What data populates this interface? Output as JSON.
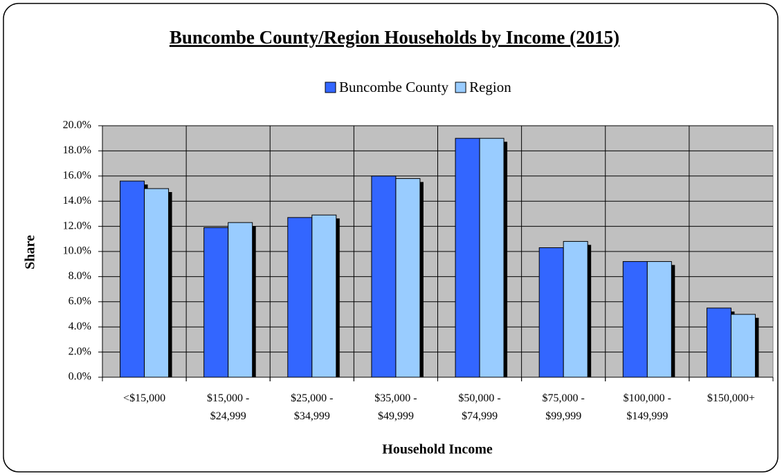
{
  "chart_data": {
    "type": "bar",
    "title": "Buncombe County/Region Households by Income (2015)",
    "x_label": "Household Income",
    "y_label": "Share",
    "categories": [
      "<$15,000",
      "$15,000 - $24,999",
      "$25,000 - $34,999",
      "$35,000 - $49,999",
      "$50,000 - $74,999",
      "$75,000 - $99,999",
      "$100,000 - $149,999",
      "$150,000+"
    ],
    "series": [
      {
        "name": "Buncombe County",
        "color": "#3366ff",
        "values": [
          15.6,
          11.9,
          12.7,
          16.0,
          19.0,
          10.3,
          9.2,
          5.5
        ]
      },
      {
        "name": "Region",
        "color": "#99ccff",
        "values": [
          15.0,
          12.3,
          12.9,
          15.8,
          19.0,
          10.8,
          9.2,
          5.0
        ]
      }
    ],
    "ylim": [
      0,
      20
    ],
    "yticks": [
      {
        "value": 0,
        "label": "0.0%"
      },
      {
        "value": 2,
        "label": "2.0%"
      },
      {
        "value": 4,
        "label": "4.0%"
      },
      {
        "value": 6,
        "label": "6.0%"
      },
      {
        "value": 8,
        "label": "8.0%"
      },
      {
        "value": 10,
        "label": "10.0%"
      },
      {
        "value": 12,
        "label": "12.0%"
      },
      {
        "value": 14,
        "label": "14.0%"
      },
      {
        "value": 16,
        "label": "16.0%"
      },
      {
        "value": 18,
        "label": "18.0%"
      },
      {
        "value": 20,
        "label": "20.0%"
      }
    ],
    "grid": true,
    "legend": "top"
  }
}
